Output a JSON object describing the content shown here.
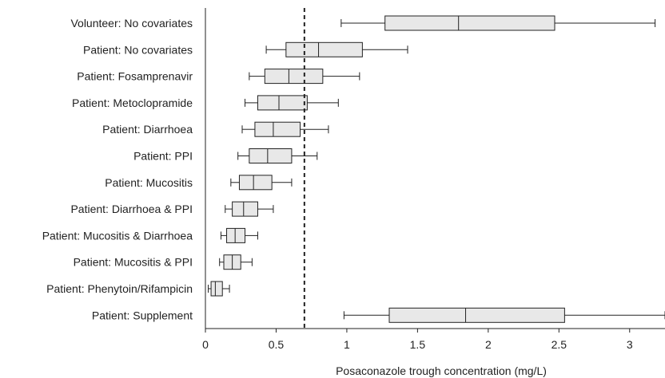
{
  "chart_data": {
    "type": "box",
    "orientation": "horizontal",
    "xlabel": "Posaconazole trough concentration (mg/L)",
    "xlim": [
      0,
      3.25
    ],
    "xticks": [
      0,
      0.5,
      1,
      1.5,
      2,
      2.5,
      3
    ],
    "xtick_labels": [
      "0",
      "0.5",
      "1",
      "1.5",
      "2",
      "2.5",
      "3"
    ],
    "reference_line": {
      "x": 0.7,
      "style": "dashed"
    },
    "grid": false,
    "box_fill": "#e8e8e8",
    "line_color": "#222222",
    "categories": [
      {
        "label": "Volunteer: No covariates",
        "whisker_low": 0.96,
        "q1": 1.27,
        "median": 1.79,
        "q3": 2.47,
        "whisker_high": 3.18
      },
      {
        "label": "Patient: No covariates",
        "whisker_low": 0.43,
        "q1": 0.57,
        "median": 0.8,
        "q3": 1.11,
        "whisker_high": 1.43
      },
      {
        "label": "Patient: Fosamprenavir",
        "whisker_low": 0.31,
        "q1": 0.42,
        "median": 0.59,
        "q3": 0.83,
        "whisker_high": 1.09
      },
      {
        "label": "Patient: Metoclopramide",
        "whisker_low": 0.28,
        "q1": 0.37,
        "median": 0.52,
        "q3": 0.72,
        "whisker_high": 0.94
      },
      {
        "label": "Patient: Diarrhoea",
        "whisker_low": 0.26,
        "q1": 0.35,
        "median": 0.48,
        "q3": 0.67,
        "whisker_high": 0.87
      },
      {
        "label": "Patient: PPI",
        "whisker_low": 0.23,
        "q1": 0.31,
        "median": 0.44,
        "q3": 0.61,
        "whisker_high": 0.79
      },
      {
        "label": "Patient: Mucositis",
        "whisker_low": 0.18,
        "q1": 0.24,
        "median": 0.34,
        "q3": 0.47,
        "whisker_high": 0.61
      },
      {
        "label": "Patient: Diarrhoea & PPI",
        "whisker_low": 0.14,
        "q1": 0.19,
        "median": 0.27,
        "q3": 0.37,
        "whisker_high": 0.48
      },
      {
        "label": "Patient: Mucositis & Diarrhoea",
        "whisker_low": 0.11,
        "q1": 0.15,
        "median": 0.21,
        "q3": 0.28,
        "whisker_high": 0.37
      },
      {
        "label": "Patient: Mucositis & PPI",
        "whisker_low": 0.1,
        "q1": 0.13,
        "median": 0.19,
        "q3": 0.25,
        "whisker_high": 0.33
      },
      {
        "label": "Patient: Phenytoin/Rifampicin",
        "whisker_low": 0.02,
        "q1": 0.04,
        "median": 0.07,
        "q3": 0.12,
        "whisker_high": 0.17
      },
      {
        "label": "Patient: Supplement",
        "whisker_low": 0.98,
        "q1": 1.3,
        "median": 1.84,
        "q3": 2.54,
        "whisker_high": 3.25
      }
    ]
  }
}
